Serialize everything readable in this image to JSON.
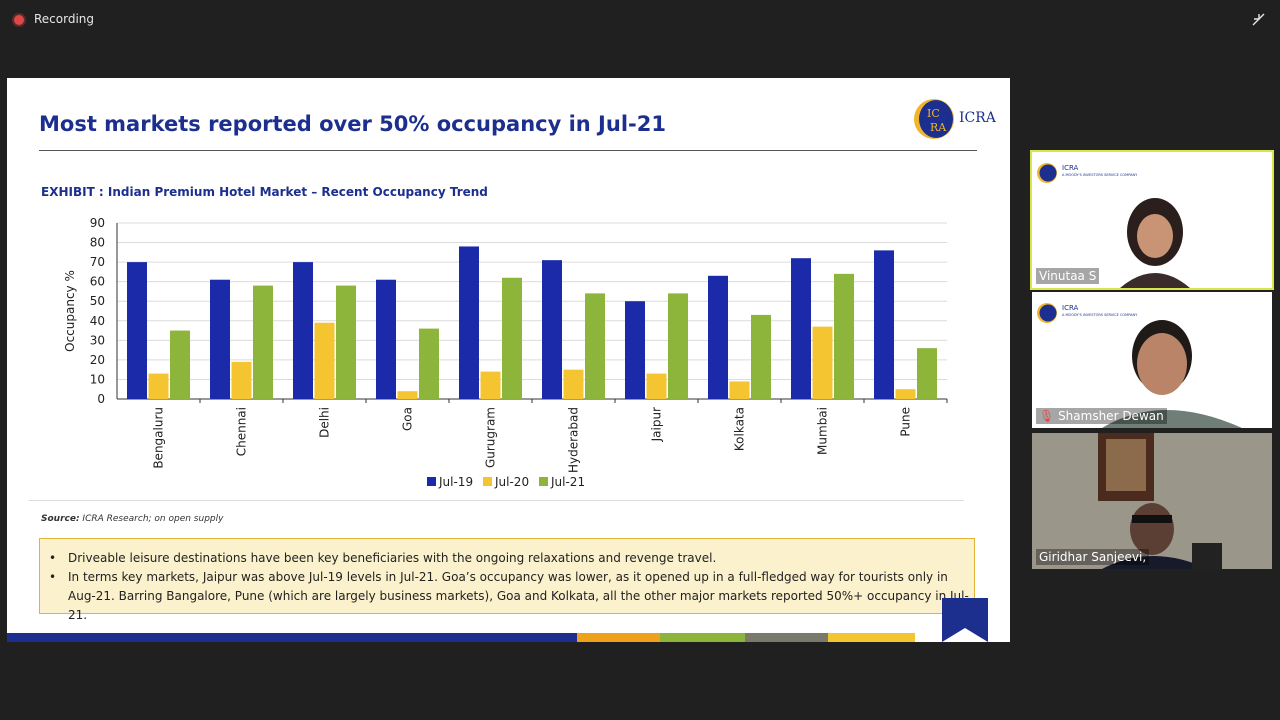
{
  "meeting": {
    "recording_label": "Recording"
  },
  "slide": {
    "title": "Most markets reported over 50% occupancy in Jul-21",
    "logo_text": "ICRA",
    "exhibit_title": "EXHIBIT : Indian Premium Hotel Market – Recent Occupancy Trend",
    "source_label": "Source:",
    "source_text": " ICRA Research; on open supply",
    "notes": [
      "Driveable leisure destinations have been key beneficiaries with the ongoing relaxations and revenge travel.",
      "In terms key markets, Jaipur was above Jul-19 levels in Jul-21. Goa’s occupancy was lower, as it opened up in a full-fledged way for tourists only in Aug-21. Barring Bangalore, Pune (which are largely business markets), Goa and Kolkata, all the other major markets reported 50%+ occupancy in Jul-21."
    ],
    "colors": {
      "brand_blue": "#1c2f8e",
      "note_bg": "#fbf1cc",
      "note_border": "#e3b33a"
    }
  },
  "chart_data": {
    "type": "bar",
    "categories": [
      "Bengaluru",
      "Chennai",
      "Delhi",
      "Goa",
      "Gurugram",
      "Hyderabad",
      "Jaipur",
      "Kolkata",
      "Mumbai",
      "Pune"
    ],
    "series": [
      {
        "name": "Jul-19",
        "color": "#1a2aa8",
        "values": [
          70,
          61,
          70,
          61,
          78,
          71,
          50,
          63,
          72,
          76
        ]
      },
      {
        "name": "Jul-20",
        "color": "#f5c431",
        "values": [
          13,
          19,
          39,
          4,
          14,
          15,
          13,
          9,
          37,
          5
        ]
      },
      {
        "name": "Jul-21",
        "color": "#8db53c",
        "values": [
          35,
          58,
          58,
          36,
          62,
          54,
          54,
          43,
          64,
          26
        ]
      }
    ],
    "ylabel": "Occupancy %",
    "ylim": [
      0,
      90
    ],
    "yticks": [
      0,
      10,
      20,
      30,
      40,
      50,
      60,
      70,
      80,
      90
    ],
    "grid": true,
    "legend": "bottom"
  },
  "participants": [
    {
      "name": "Vinutaa S",
      "logo_text": "ICRA",
      "logo_sub": "A MOODY'S INVESTORS SERVICE COMPANY",
      "active": true
    },
    {
      "name": "Shamsher Dewan",
      "logo_text": "ICRA",
      "logo_sub": "A MOODY'S INVESTORS SERVICE COMPANY",
      "muted": true
    },
    {
      "name": "Giridhar Sanjeevi,"
    }
  ]
}
